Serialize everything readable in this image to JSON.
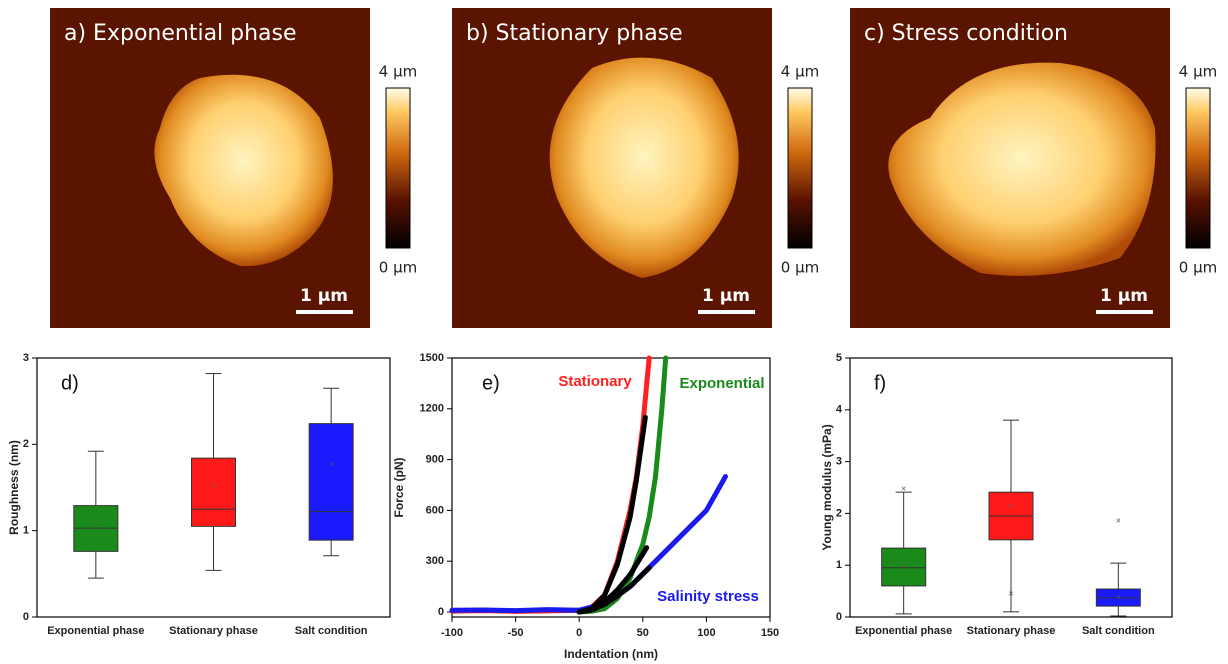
{
  "images": [
    {
      "title": "a) Exponential phase",
      "colorbar_max": "4 µm",
      "colorbar_min": "0 µm",
      "scale_bar": "1 µm"
    },
    {
      "title": "b) Stationary phase",
      "colorbar_max": "4 µm",
      "colorbar_min": "0 µm",
      "scale_bar": "1 µm"
    },
    {
      "title": "c) Stress condition",
      "colorbar_max": "4 µm",
      "colorbar_min": "0 µm",
      "scale_bar": "1 µm"
    }
  ],
  "chart_data": [
    {
      "type": "box",
      "title": "d)",
      "y_label": "Roughness (nm)",
      "categories": [
        "Exponential phase",
        "Stationary phase",
        "Salt condition"
      ],
      "ylim": [
        0,
        3
      ],
      "yticks": [
        0,
        1,
        2,
        3
      ],
      "boxes": [
        {
          "color": "#1a8a1a",
          "whislo": 0.45,
          "q1": 0.76,
          "med": 1.03,
          "q3": 1.29,
          "whishi": 1.92,
          "mean": 1.08,
          "fliers": []
        },
        {
          "color": "#ff1a1a",
          "whislo": 0.54,
          "q1": 1.05,
          "med": 1.25,
          "q3": 1.84,
          "whishi": 2.82,
          "mean": 1.52,
          "fliers": []
        },
        {
          "color": "#1a1aff",
          "whislo": 0.71,
          "q1": 0.89,
          "med": 1.22,
          "q3": 2.24,
          "whishi": 2.65,
          "mean": 1.76,
          "fliers": []
        }
      ]
    },
    {
      "type": "line",
      "title": "e)",
      "x_label": "Indentation (nm)",
      "y_label": "Force (pN)",
      "xlim": [
        -100,
        150
      ],
      "xticks": [
        -100,
        -50,
        0,
        50,
        100,
        150
      ],
      "ylim": [
        0,
        1500
      ],
      "yticks": [
        0,
        300,
        600,
        900,
        1200,
        1500
      ],
      "series": [
        {
          "name": "Stationary",
          "color": "#ff2020",
          "x": [
            -100,
            -75,
            -50,
            -25,
            0,
            10,
            20,
            30,
            40,
            45,
            50,
            55
          ],
          "values": [
            5,
            8,
            4,
            7,
            10,
            30,
            100,
            300,
            600,
            800,
            1100,
            1500
          ]
        },
        {
          "name": "Exponential",
          "color": "#1a8a1a",
          "x": [
            0,
            10,
            20,
            30,
            40,
            50,
            55,
            60,
            65,
            68
          ],
          "values": [
            0,
            5,
            20,
            80,
            200,
            400,
            560,
            800,
            1200,
            1500
          ]
        },
        {
          "name": "Salinity stress",
          "color": "#1a1aee",
          "x": [
            -100,
            -75,
            -50,
            -25,
            0,
            20,
            40,
            60,
            80,
            100,
            115
          ],
          "values": [
            10,
            12,
            8,
            14,
            10,
            50,
            150,
            300,
            450,
            600,
            800
          ]
        },
        {
          "color": "#000000",
          "x": [
            0,
            10,
            20,
            30,
            40,
            45,
            52
          ],
          "values": [
            0,
            20,
            100,
            280,
            560,
            780,
            1150
          ]
        },
        {
          "color": "#000000",
          "x": [
            0,
            10,
            20,
            30,
            40,
            53
          ],
          "values": [
            0,
            15,
            60,
            130,
            220,
            380
          ]
        },
        {
          "color": "#000000",
          "x": [
            0,
            10,
            20,
            30,
            40,
            55
          ],
          "values": [
            0,
            12,
            45,
            95,
            150,
            260
          ]
        }
      ]
    },
    {
      "type": "box",
      "title": "f)",
      "y_label": "Young modulus (mPa)",
      "categories": [
        "Exponential phase",
        "Stationary phase",
        "Salt condition"
      ],
      "ylim": [
        0,
        5
      ],
      "yticks": [
        0,
        1,
        2,
        3,
        4,
        5
      ],
      "boxes": [
        {
          "color": "#1a8a1a",
          "whislo": 0.06,
          "q1": 0.6,
          "med": 0.95,
          "q3": 1.33,
          "whishi": 2.41,
          "mean": 0.97,
          "fliers": [
            2.47
          ]
        },
        {
          "color": "#ff1a1a",
          "whislo": 0.1,
          "q1": 1.49,
          "med": 1.95,
          "q3": 2.41,
          "whishi": 3.8,
          "mean": 2.14,
          "fliers": [
            0.44
          ]
        },
        {
          "color": "#1a1aff",
          "whislo": 0.02,
          "q1": 0.21,
          "med": 0.37,
          "q3": 0.54,
          "whishi": 1.04,
          "mean": 0.38,
          "fliers": [
            1.85
          ]
        }
      ]
    }
  ]
}
